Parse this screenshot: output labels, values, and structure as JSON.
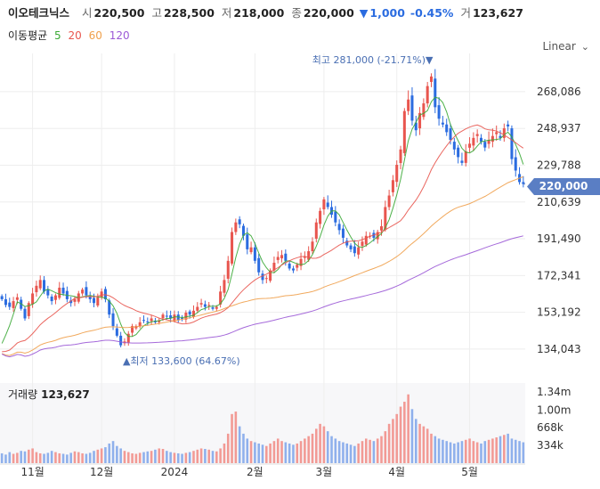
{
  "header": {
    "name": "이오테크닉스",
    "open_label": "시",
    "open": "220,500",
    "high_label": "고",
    "high": "228,500",
    "low_label": "저",
    "low": "218,000",
    "close_label": "종",
    "close": "220,000",
    "change_arrow": "▼",
    "change": "1,000",
    "change_pct": "-0.45%",
    "volume_label": "거",
    "volume": "123,627"
  },
  "ma_legend": {
    "label": "이동평균",
    "items": [
      {
        "period": "5",
        "color": "#3aa935"
      },
      {
        "period": "20",
        "color": "#e8554e"
      },
      {
        "period": "60",
        "color": "#f0a04b"
      },
      {
        "period": "120",
        "color": "#9b59d6"
      }
    ]
  },
  "scale_selector": {
    "value": "Linear"
  },
  "current_price_tag": "220,000",
  "volume_panel": {
    "label": "거래량",
    "value": "123,627"
  },
  "colors": {
    "up": "#e8554e",
    "down": "#2b6ce0",
    "grid": "#eeeeee",
    "tag": "#5a7ec4"
  },
  "chart_data": {
    "type": "candlestick",
    "y_ticks": [
      "268,086",
      "248,937",
      "229,788",
      "210,639",
      "191,490",
      "172,341",
      "153,192",
      "134,043"
    ],
    "y_tick_values": [
      268086,
      248937,
      229788,
      210639,
      191490,
      172341,
      153192,
      134043
    ],
    "ylim": [
      121000,
      288000
    ],
    "x_ticks": [
      "11월",
      "12월",
      "2024",
      "2월",
      "3월",
      "4월",
      "5월"
    ],
    "x_tick_index": [
      8,
      26,
      45,
      66,
      84,
      103,
      122
    ],
    "annotations": {
      "high": {
        "text": "최고 281,000 (-21.71%)▼",
        "index": 112,
        "value": 281000
      },
      "low": {
        "text": "▲최저 133,600 (64.67%)",
        "index": 32,
        "value": 133600
      }
    },
    "close": [
      160,
      157,
      156,
      159,
      161,
      155,
      150,
      158,
      163,
      167,
      170,
      164,
      162,
      159,
      162,
      166,
      163,
      160,
      158,
      160,
      163,
      165,
      162,
      160,
      158,
      161,
      164,
      160,
      152,
      146,
      141,
      136,
      138,
      142,
      146,
      146,
      148,
      149,
      148,
      150,
      148,
      149,
      152,
      151,
      150,
      152,
      149,
      150,
      153,
      152,
      154,
      156,
      158,
      156,
      157,
      155,
      156,
      164,
      170,
      180,
      195,
      200,
      199,
      193,
      186,
      187,
      180,
      174,
      170,
      171,
      175,
      179,
      182,
      183,
      180,
      176,
      175,
      178,
      181,
      182,
      185,
      190,
      200,
      206,
      212,
      208,
      204,
      200,
      196,
      192,
      188,
      186,
      184,
      187,
      190,
      193,
      193,
      192,
      195,
      198,
      208,
      214,
      222,
      230,
      238,
      258,
      264,
      253,
      248,
      257,
      262,
      271,
      276,
      260,
      254,
      251,
      247,
      243,
      238,
      234,
      231,
      237,
      241,
      244,
      246,
      242,
      239,
      243,
      245,
      247,
      244,
      249,
      250,
      233,
      227,
      221,
      220
    ],
    "volume": [
      40,
      35,
      45,
      38,
      42,
      50,
      48,
      55,
      60,
      45,
      40,
      38,
      42,
      50,
      45,
      40,
      38,
      35,
      42,
      48,
      45,
      40,
      38,
      42,
      50,
      55,
      60,
      65,
      80,
      90,
      70,
      60,
      50,
      45,
      40,
      38,
      42,
      45,
      48,
      50,
      55,
      60,
      58,
      50,
      45,
      42,
      40,
      38,
      42,
      45,
      50,
      55,
      60,
      58,
      55,
      50,
      48,
      60,
      80,
      120,
      200,
      210,
      150,
      120,
      100,
      90,
      85,
      80,
      75,
      70,
      80,
      90,
      100,
      90,
      85,
      80,
      75,
      80,
      90,
      100,
      110,
      120,
      140,
      160,
      150,
      130,
      110,
      100,
      90,
      85,
      80,
      75,
      70,
      80,
      90,
      100,
      95,
      90,
      100,
      110,
      130,
      160,
      180,
      200,
      230,
      250,
      280,
      220,
      180,
      160,
      150,
      140,
      120,
      110,
      100,
      95,
      90,
      85,
      80,
      85,
      90,
      95,
      100,
      90,
      85,
      80,
      90,
      95,
      100,
      105,
      110,
      115,
      120,
      100,
      95,
      90,
      85
    ]
  }
}
